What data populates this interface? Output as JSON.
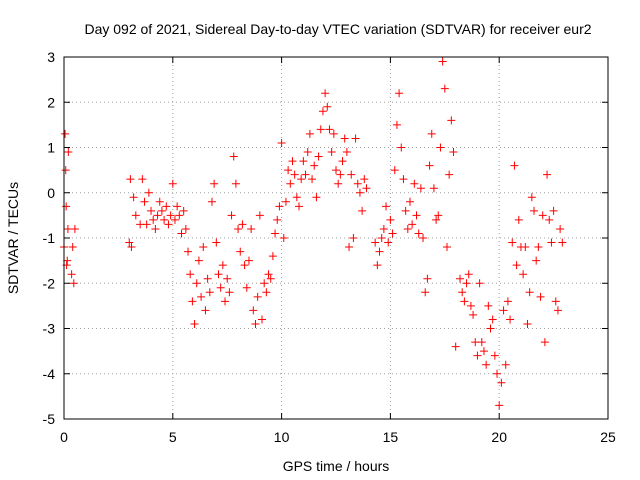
{
  "chart_data": {
    "type": "scatter",
    "title": "Day 092 of 2021, Sidereal Day-to-day VTEC variation (SDTVAR) for receiver eur2",
    "xlabel": "GPS time / hours",
    "ylabel": "SDTVAR / TECUs",
    "xlim": [
      0,
      25
    ],
    "ylim": [
      -5,
      3
    ],
    "xticks": [
      "0",
      "5",
      "10",
      "15",
      "20",
      "25"
    ],
    "yticks": [
      "3",
      "2",
      "1",
      "0",
      "-1",
      "-2",
      "-3",
      "-4",
      "-5"
    ],
    "grid": true,
    "marker": "+",
    "color": "#ff0000",
    "series": [
      {
        "name": "SDTVAR",
        "points": [
          [
            0.0,
            -1.2
          ],
          [
            0.05,
            1.3
          ],
          [
            0.08,
            0.5
          ],
          [
            0.1,
            -0.3
          ],
          [
            0.12,
            -1.6
          ],
          [
            0.15,
            -1.5
          ],
          [
            0.18,
            -0.8
          ],
          [
            0.2,
            0.9
          ],
          [
            0.35,
            -1.8
          ],
          [
            0.4,
            -1.2
          ],
          [
            0.45,
            -2.0
          ],
          [
            0.5,
            -0.8
          ],
          [
            3.0,
            -1.1
          ],
          [
            3.05,
            0.3
          ],
          [
            3.1,
            -1.2
          ],
          [
            3.2,
            -0.1
          ],
          [
            3.3,
            -0.5
          ],
          [
            3.5,
            -0.7
          ],
          [
            3.6,
            0.3
          ],
          [
            3.7,
            -0.2
          ],
          [
            3.8,
            -0.7
          ],
          [
            3.9,
            0.0
          ],
          [
            4.0,
            -0.4
          ],
          [
            4.1,
            -0.6
          ],
          [
            4.2,
            -0.8
          ],
          [
            4.3,
            -0.5
          ],
          [
            4.4,
            -0.2
          ],
          [
            4.5,
            -0.4
          ],
          [
            4.6,
            -0.6
          ],
          [
            4.7,
            -0.3
          ],
          [
            4.8,
            -0.7
          ],
          [
            4.9,
            -0.5
          ],
          [
            5.0,
            0.2
          ],
          [
            5.1,
            -0.6
          ],
          [
            5.2,
            -0.3
          ],
          [
            5.3,
            -0.5
          ],
          [
            5.4,
            -0.9
          ],
          [
            5.5,
            -0.4
          ],
          [
            5.6,
            -0.8
          ],
          [
            5.7,
            -1.3
          ],
          [
            5.8,
            -1.8
          ],
          [
            5.9,
            -2.4
          ],
          [
            6.0,
            -2.9
          ],
          [
            6.1,
            -2.0
          ],
          [
            6.2,
            -1.5
          ],
          [
            6.3,
            -2.3
          ],
          [
            6.4,
            -1.2
          ],
          [
            6.5,
            -2.6
          ],
          [
            6.6,
            -1.9
          ],
          [
            6.7,
            -2.2
          ],
          [
            6.8,
            -0.2
          ],
          [
            6.9,
            0.2
          ],
          [
            7.0,
            -1.1
          ],
          [
            7.1,
            -1.8
          ],
          [
            7.2,
            -2.1
          ],
          [
            7.3,
            -1.6
          ],
          [
            7.4,
            -2.4
          ],
          [
            7.5,
            -1.9
          ],
          [
            7.6,
            -2.2
          ],
          [
            7.7,
            -0.5
          ],
          [
            7.8,
            0.8
          ],
          [
            7.9,
            0.2
          ],
          [
            8.0,
            -0.8
          ],
          [
            8.1,
            -1.3
          ],
          [
            8.2,
            -0.7
          ],
          [
            8.3,
            -1.6
          ],
          [
            8.4,
            -2.1
          ],
          [
            8.5,
            -1.5
          ],
          [
            8.6,
            -0.8
          ],
          [
            8.7,
            -2.6
          ],
          [
            8.8,
            -2.9
          ],
          [
            8.9,
            -2.3
          ],
          [
            9.0,
            -0.5
          ],
          [
            9.1,
            -2.8
          ],
          [
            9.2,
            -2.0
          ],
          [
            9.3,
            -2.2
          ],
          [
            9.4,
            -1.8
          ],
          [
            9.5,
            -1.9
          ],
          [
            9.6,
            -1.4
          ],
          [
            9.7,
            -0.9
          ],
          [
            9.8,
            -0.6
          ],
          [
            9.9,
            -0.3
          ],
          [
            10.0,
            1.1
          ],
          [
            10.1,
            -1.0
          ],
          [
            10.2,
            -0.2
          ],
          [
            10.3,
            0.5
          ],
          [
            10.4,
            0.2
          ],
          [
            10.5,
            0.7
          ],
          [
            10.6,
            0.4
          ],
          [
            10.7,
            -0.1
          ],
          [
            10.8,
            -0.3
          ],
          [
            10.9,
            0.3
          ],
          [
            11.0,
            0.7
          ],
          [
            11.1,
            0.4
          ],
          [
            11.2,
            0.9
          ],
          [
            11.3,
            1.3
          ],
          [
            11.4,
            0.3
          ],
          [
            11.5,
            0.6
          ],
          [
            11.6,
            -0.1
          ],
          [
            11.7,
            0.8
          ],
          [
            11.8,
            1.4
          ],
          [
            11.9,
            1.8
          ],
          [
            12.0,
            2.2
          ],
          [
            12.1,
            1.9
          ],
          [
            12.2,
            1.4
          ],
          [
            12.3,
            0.9
          ],
          [
            12.4,
            1.3
          ],
          [
            12.5,
            0.5
          ],
          [
            12.6,
            0.2
          ],
          [
            12.7,
            0.4
          ],
          [
            12.8,
            0.7
          ],
          [
            12.9,
            1.2
          ],
          [
            13.0,
            0.9
          ],
          [
            13.1,
            -1.2
          ],
          [
            13.2,
            0.4
          ],
          [
            13.3,
            -1.0
          ],
          [
            13.4,
            1.2
          ],
          [
            13.5,
            0.2
          ],
          [
            13.6,
            0.0
          ],
          [
            13.7,
            -0.4
          ],
          [
            13.8,
            0.3
          ],
          [
            13.9,
            0.1
          ],
          [
            14.3,
            -1.1
          ],
          [
            14.4,
            -1.6
          ],
          [
            14.5,
            -1.3
          ],
          [
            14.6,
            -1.0
          ],
          [
            14.7,
            -0.8
          ],
          [
            14.8,
            -0.3
          ],
          [
            14.9,
            -1.1
          ],
          [
            15.0,
            -0.6
          ],
          [
            15.1,
            -0.9
          ],
          [
            15.2,
            0.5
          ],
          [
            15.3,
            1.5
          ],
          [
            15.4,
            2.2
          ],
          [
            15.5,
            1.0
          ],
          [
            15.6,
            0.3
          ],
          [
            15.7,
            -0.4
          ],
          [
            15.8,
            -0.8
          ],
          [
            15.9,
            -0.2
          ],
          [
            16.0,
            -0.7
          ],
          [
            16.1,
            0.2
          ],
          [
            16.2,
            -0.5
          ],
          [
            16.3,
            -0.9
          ],
          [
            16.4,
            0.1
          ],
          [
            16.5,
            -1.0
          ],
          [
            16.6,
            -2.2
          ],
          [
            16.7,
            -1.9
          ],
          [
            16.8,
            0.6
          ],
          [
            16.9,
            1.3
          ],
          [
            17.0,
            0.1
          ],
          [
            17.1,
            -0.6
          ],
          [
            17.2,
            -0.5
          ],
          [
            17.3,
            1.0
          ],
          [
            17.4,
            2.9
          ],
          [
            17.5,
            2.3
          ],
          [
            17.6,
            -1.2
          ],
          [
            17.7,
            0.4
          ],
          [
            17.8,
            1.6
          ],
          [
            17.9,
            0.9
          ],
          [
            18.0,
            -3.4
          ],
          [
            18.2,
            -1.9
          ],
          [
            18.3,
            -2.2
          ],
          [
            18.4,
            -2.4
          ],
          [
            18.5,
            -2.0
          ],
          [
            18.6,
            -1.8
          ],
          [
            18.7,
            -2.5
          ],
          [
            18.8,
            -2.7
          ],
          [
            18.9,
            -3.3
          ],
          [
            19.0,
            -3.6
          ],
          [
            19.1,
            -2.0
          ],
          [
            19.2,
            -3.3
          ],
          [
            19.3,
            -3.5
          ],
          [
            19.4,
            -3.8
          ],
          [
            19.5,
            -2.5
          ],
          [
            19.6,
            -3.0
          ],
          [
            19.7,
            -2.8
          ],
          [
            19.8,
            -3.6
          ],
          [
            19.9,
            -4.0
          ],
          [
            20.0,
            -4.7
          ],
          [
            20.1,
            -4.2
          ],
          [
            20.2,
            -2.6
          ],
          [
            20.3,
            -3.8
          ],
          [
            20.4,
            -2.4
          ],
          [
            20.5,
            -2.8
          ],
          [
            20.6,
            -1.1
          ],
          [
            20.7,
            0.6
          ],
          [
            20.8,
            -1.6
          ],
          [
            20.9,
            -0.6
          ],
          [
            21.0,
            -1.2
          ],
          [
            21.1,
            -1.8
          ],
          [
            21.2,
            -1.2
          ],
          [
            21.3,
            -2.9
          ],
          [
            21.4,
            -2.2
          ],
          [
            21.5,
            -0.1
          ],
          [
            21.6,
            -0.4
          ],
          [
            21.7,
            -1.5
          ],
          [
            21.8,
            -1.2
          ],
          [
            21.9,
            -2.3
          ],
          [
            22.0,
            -0.5
          ],
          [
            22.1,
            -3.3
          ],
          [
            22.2,
            0.4
          ],
          [
            22.3,
            -0.6
          ],
          [
            22.4,
            -1.1
          ],
          [
            22.5,
            -0.4
          ],
          [
            22.6,
            -2.4
          ],
          [
            22.7,
            -2.6
          ],
          [
            22.8,
            -0.8
          ],
          [
            22.9,
            -1.1
          ]
        ]
      }
    ]
  }
}
